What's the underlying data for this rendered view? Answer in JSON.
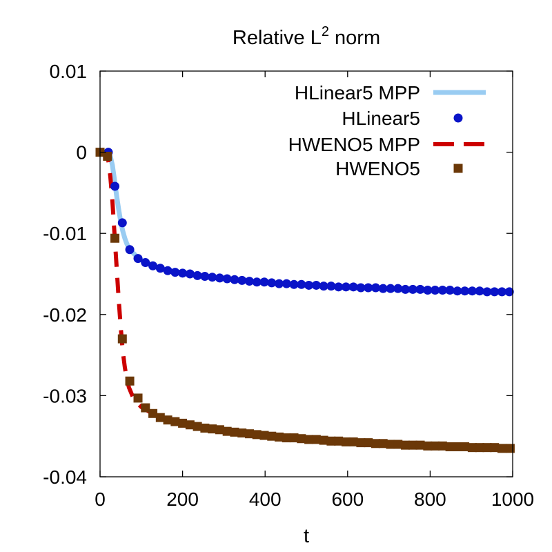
{
  "chart_data": {
    "type": "line",
    "title": {
      "main": "Relative L",
      "sup": "2",
      "rest": " norm"
    },
    "xlabel": "t",
    "ylabel": "",
    "xlim": [
      0,
      1000
    ],
    "ylim": [
      -0.04,
      0.01
    ],
    "grid": false,
    "legend_position": "top-right",
    "x_ticks": [
      {
        "value": 0,
        "label": "0"
      },
      {
        "value": 200,
        "label": "200"
      },
      {
        "value": 400,
        "label": "400"
      },
      {
        "value": 600,
        "label": "600"
      },
      {
        "value": 800,
        "label": "800"
      },
      {
        "value": 1000,
        "label": "1000"
      }
    ],
    "y_ticks": [
      {
        "value": 0.01,
        "label": "0.01"
      },
      {
        "value": 0,
        "label": "0"
      },
      {
        "value": -0.01,
        "label": "-0.01"
      },
      {
        "value": -0.02,
        "label": "-0.02"
      },
      {
        "value": -0.03,
        "label": "-0.03"
      },
      {
        "value": -0.04,
        "label": "-0.04"
      }
    ],
    "series": [
      {
        "name": "HLinear5 MPP",
        "style": "line",
        "color": "#99ccf2",
        "x": [
          0,
          10,
          20,
          25,
          30,
          35,
          40,
          45,
          50,
          55,
          60,
          65,
          70,
          80,
          90,
          100,
          120,
          140,
          160,
          180,
          200,
          250,
          300,
          400,
          500,
          600,
          700,
          800,
          900,
          1000
        ],
        "y": [
          0,
          0,
          -0.0001,
          -0.0005,
          -0.0016,
          -0.0034,
          -0.0053,
          -0.007,
          -0.0085,
          -0.0097,
          -0.0106,
          -0.0113,
          -0.0118,
          -0.0124,
          -0.0129,
          -0.0133,
          -0.0138,
          -0.0142,
          -0.0145,
          -0.0147,
          -0.0149,
          -0.0153,
          -0.0156,
          -0.0161,
          -0.0164,
          -0.0167,
          -0.0169,
          -0.0171,
          -0.0172,
          -0.0173
        ]
      },
      {
        "name": "HLinear5",
        "style": "points",
        "marker": "circle",
        "color": "#0a14c8",
        "x": [
          20,
          36,
          54,
          72,
          92,
          110,
          128,
          146,
          164,
          182,
          200,
          218,
          236,
          254,
          272,
          290,
          308,
          326,
          344,
          362,
          380,
          398,
          416,
          434,
          452,
          470,
          488,
          506,
          524,
          542,
          560,
          578,
          596,
          614,
          632,
          650,
          668,
          686,
          704,
          722,
          740,
          758,
          776,
          794,
          812,
          830,
          848,
          866,
          884,
          902,
          920,
          938,
          956,
          974,
          992
        ],
        "y": [
          0,
          -0.0042,
          -0.0087,
          -0.012,
          -0.0131,
          -0.0136,
          -0.014,
          -0.0143,
          -0.0146,
          -0.0148,
          -0.0149,
          -0.015,
          -0.0152,
          -0.0153,
          -0.0154,
          -0.0155,
          -0.0156,
          -0.0157,
          -0.0158,
          -0.0159,
          -0.016,
          -0.016,
          -0.0161,
          -0.0162,
          -0.0162,
          -0.0163,
          -0.0163,
          -0.0164,
          -0.0164,
          -0.0165,
          -0.0165,
          -0.0166,
          -0.0166,
          -0.0166,
          -0.0167,
          -0.0167,
          -0.0167,
          -0.0168,
          -0.0168,
          -0.0168,
          -0.0169,
          -0.0169,
          -0.0169,
          -0.017,
          -0.017,
          -0.017,
          -0.017,
          -0.0171,
          -0.0171,
          -0.0171,
          -0.0171,
          -0.0172,
          -0.0172,
          -0.0172,
          -0.0172
        ]
      },
      {
        "name": "HWENO5 MPP",
        "style": "dashed",
        "color": "#cc0000",
        "x": [
          0,
          10,
          20,
          25,
          30,
          35,
          40,
          45,
          50,
          55,
          60,
          65,
          70,
          80,
          90,
          100,
          120,
          140,
          160,
          180,
          200,
          250,
          300,
          400,
          500,
          600,
          700,
          800,
          900,
          1000
        ],
        "y": [
          0,
          0,
          -0.001,
          -0.003,
          -0.006,
          -0.01,
          -0.014,
          -0.018,
          -0.0215,
          -0.0245,
          -0.0265,
          -0.028,
          -0.029,
          -0.0302,
          -0.0309,
          -0.0314,
          -0.032,
          -0.0325,
          -0.0329,
          -0.0332,
          -0.0334,
          -0.0339,
          -0.0343,
          -0.035,
          -0.0354,
          -0.0357,
          -0.036,
          -0.0362,
          -0.0364,
          -0.0365
        ]
      },
      {
        "name": "HWENO5",
        "style": "points",
        "marker": "square",
        "color": "#6b3808",
        "x": [
          0,
          18,
          36,
          54,
          72,
          92,
          110,
          128,
          146,
          164,
          182,
          200,
          218,
          236,
          254,
          272,
          290,
          308,
          326,
          344,
          362,
          380,
          398,
          416,
          434,
          452,
          470,
          488,
          506,
          524,
          542,
          560,
          578,
          596,
          614,
          632,
          650,
          668,
          686,
          704,
          722,
          740,
          758,
          776,
          794,
          812,
          830,
          848,
          866,
          884,
          902,
          920,
          938,
          956,
          974,
          994
        ],
        "y": [
          0,
          -0.0005,
          -0.0106,
          -0.023,
          -0.0282,
          -0.0303,
          -0.0315,
          -0.0322,
          -0.0327,
          -0.033,
          -0.0332,
          -0.0334,
          -0.0336,
          -0.0338,
          -0.034,
          -0.0341,
          -0.0342,
          -0.0344,
          -0.0345,
          -0.0346,
          -0.0347,
          -0.0348,
          -0.0349,
          -0.035,
          -0.0351,
          -0.0352,
          -0.0352,
          -0.0353,
          -0.0354,
          -0.0354,
          -0.0355,
          -0.0356,
          -0.0356,
          -0.0357,
          -0.0357,
          -0.0358,
          -0.0358,
          -0.0359,
          -0.0359,
          -0.036,
          -0.036,
          -0.0361,
          -0.0361,
          -0.0361,
          -0.0362,
          -0.0362,
          -0.0362,
          -0.0363,
          -0.0363,
          -0.0363,
          -0.0364,
          -0.0364,
          -0.0364,
          -0.0364,
          -0.0365,
          -0.0365
        ]
      }
    ]
  }
}
